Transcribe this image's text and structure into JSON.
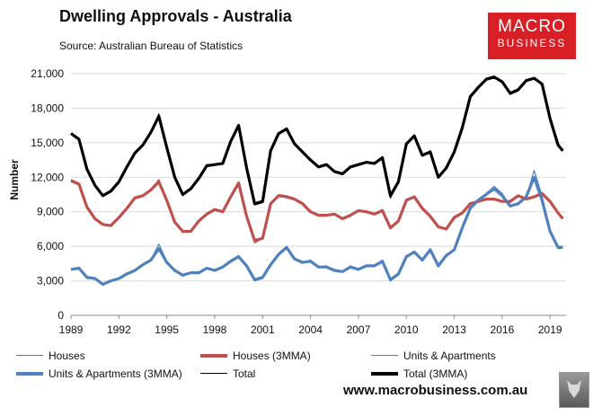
{
  "header": {
    "title": "Dwelling Approvals - Australia",
    "source": "Source:  Australian Bureau of Statistics"
  },
  "logo": {
    "line1": "MACRO",
    "line2": "BUSINESS"
  },
  "footer": {
    "url": "www.macrobusiness.com.au"
  },
  "colors": {
    "houses": "#c0504d",
    "units": "#4f81bd",
    "total": "#000000"
  },
  "chart_data": {
    "type": "line",
    "ylabel": "Number",
    "ylim": [
      0,
      21000
    ],
    "xlim": [
      1989.0,
      2020.0
    ],
    "yticks": [
      "0",
      "3,000",
      "6,000",
      "9,000",
      "12,000",
      "15,000",
      "18,000",
      "21,000"
    ],
    "ytick_values": [
      0,
      3000,
      6000,
      9000,
      12000,
      15000,
      18000,
      21000
    ],
    "xticks": [
      "1989",
      "1992",
      "1995",
      "1998",
      "2001",
      "2004",
      "2007",
      "2010",
      "2013",
      "2016",
      "2019"
    ],
    "xtick_values": [
      1989,
      1992,
      1995,
      1998,
      2001,
      2004,
      2007,
      2010,
      2013,
      2016,
      2019
    ],
    "grid": "horizontal",
    "legend_position": "bottom",
    "x": [
      1989.0,
      1989.5,
      1990.0,
      1990.5,
      1991.0,
      1991.5,
      1992.0,
      1992.5,
      1993.0,
      1993.5,
      1994.0,
      1994.5,
      1995.0,
      1995.5,
      1996.0,
      1996.5,
      1997.0,
      1997.5,
      1998.0,
      1998.5,
      1999.0,
      1999.5,
      2000.0,
      2000.5,
      2001.0,
      2001.5,
      2002.0,
      2002.5,
      2003.0,
      2003.5,
      2004.0,
      2004.5,
      2005.0,
      2005.5,
      2006.0,
      2006.5,
      2007.0,
      2007.5,
      2008.0,
      2008.5,
      2009.0,
      2009.5,
      2010.0,
      2010.5,
      2011.0,
      2011.5,
      2012.0,
      2012.5,
      2013.0,
      2013.5,
      2014.0,
      2014.5,
      2015.0,
      2015.5,
      2016.0,
      2016.5,
      2017.0,
      2017.5,
      2018.0,
      2018.5,
      2019.0,
      2019.5,
      2019.8
    ],
    "series": [
      {
        "name": "Houses",
        "style": "thin",
        "color_key": "houses",
        "values": [
          11800,
          11500,
          9300,
          8400,
          7900,
          7800,
          8500,
          9300,
          10200,
          10400,
          10900,
          11800,
          10100,
          8100,
          7200,
          7300,
          8200,
          8900,
          9200,
          9000,
          10400,
          11600,
          8500,
          6300,
          6700,
          9800,
          10500,
          10400,
          10100,
          9800,
          9000,
          8700,
          8700,
          8800,
          8400,
          8700,
          9100,
          9000,
          8800,
          9200,
          7500,
          8200,
          10100,
          10300,
          9300,
          8600,
          7700,
          7500,
          8600,
          8900,
          9700,
          9900,
          10100,
          10100,
          9900,
          9800,
          10400,
          10100,
          10300,
          10500,
          9800,
          8900,
          8400
        ]
      },
      {
        "name": "Houses (3MMA)",
        "style": "thick",
        "color_key": "houses",
        "values": [
          11700,
          11400,
          9400,
          8400,
          7900,
          7800,
          8500,
          9300,
          10200,
          10400,
          10900,
          11600,
          10000,
          8100,
          7300,
          7300,
          8200,
          8800,
          9200,
          9000,
          10300,
          11500,
          8600,
          6500,
          6700,
          9700,
          10400,
          10300,
          10100,
          9700,
          9000,
          8700,
          8700,
          8800,
          8400,
          8700,
          9100,
          9000,
          8800,
          9100,
          7600,
          8200,
          10000,
          10300,
          9300,
          8600,
          7700,
          7500,
          8500,
          8900,
          9700,
          9900,
          10100,
          10100,
          9900,
          9900,
          10400,
          10100,
          10300,
          10600,
          9900,
          8900,
          8400
        ]
      },
      {
        "name": "Units & Apartments",
        "style": "thin",
        "color_key": "units",
        "values": [
          4000,
          4200,
          3200,
          3200,
          2600,
          3000,
          3200,
          3600,
          3900,
          4400,
          4800,
          6200,
          4700,
          3900,
          3400,
          3700,
          3700,
          4100,
          3900,
          4200,
          4800,
          5200,
          4300,
          3000,
          3200,
          4400,
          5400,
          6000,
          5000,
          4600,
          4800,
          4200,
          4300,
          3900,
          3800,
          4300,
          4000,
          4300,
          4300,
          4800,
          3000,
          3500,
          5200,
          5500,
          4800,
          5800,
          4200,
          5300,
          5700,
          7800,
          9400,
          10100,
          10600,
          11200,
          10600,
          9500,
          9600,
          10200,
          12600,
          10400,
          7400,
          5800,
          5900
        ]
      },
      {
        "name": "Units & Apartments (3MMA)",
        "style": "thick",
        "color_key": "units",
        "values": [
          4000,
          4100,
          3300,
          3200,
          2700,
          3000,
          3200,
          3600,
          3900,
          4400,
          4800,
          5800,
          4600,
          3900,
          3500,
          3700,
          3700,
          4100,
          3900,
          4200,
          4700,
          5100,
          4300,
          3100,
          3300,
          4400,
          5300,
          5900,
          4900,
          4600,
          4700,
          4200,
          4200,
          3900,
          3800,
          4200,
          4000,
          4300,
          4300,
          4700,
          3100,
          3600,
          5100,
          5500,
          4800,
          5700,
          4300,
          5200,
          5700,
          7600,
          9300,
          10000,
          10500,
          11000,
          10400,
          9500,
          9700,
          10300,
          12000,
          10000,
          7300,
          5900,
          5900
        ]
      },
      {
        "name": "Total",
        "style": "thin",
        "color_key": "total",
        "values": [
          15800,
          15400,
          12600,
          11300,
          10400,
          10800,
          11600,
          13000,
          14100,
          14800,
          15900,
          17500,
          14700,
          12000,
          10400,
          11000,
          11900,
          13100,
          13100,
          13200,
          15200,
          16600,
          12700,
          9600,
          9800,
          14400,
          15800,
          16300,
          14900,
          14200,
          13500,
          12900,
          13100,
          12500,
          12300,
          12900,
          13100,
          13300,
          13200,
          13700,
          10200,
          11500,
          15000,
          15600,
          13900,
          14300,
          12000,
          12800,
          14200,
          16400,
          19100,
          19800,
          20600,
          20800,
          20300,
          19200,
          19500,
          20400,
          20600,
          20000,
          17000,
          14700,
          14300
        ]
      },
      {
        "name": "Total (3MMA)",
        "style": "thick",
        "color_key": "total",
        "values": [
          15800,
          15300,
          12700,
          11300,
          10400,
          10800,
          11600,
          12900,
          14100,
          14800,
          15900,
          17300,
          14600,
          12000,
          10500,
          11000,
          11900,
          13000,
          13100,
          13200,
          15100,
          16500,
          12800,
          9700,
          9900,
          14300,
          15800,
          16200,
          14900,
          14200,
          13500,
          12900,
          13100,
          12500,
          12300,
          12900,
          13100,
          13300,
          13200,
          13700,
          10400,
          11600,
          14900,
          15600,
          13900,
          14200,
          12000,
          12800,
          14200,
          16300,
          19000,
          19800,
          20500,
          20700,
          20300,
          19300,
          19600,
          20400,
          20600,
          20100,
          17100,
          14800,
          14300
        ]
      }
    ]
  },
  "legend": [
    {
      "label": "Houses",
      "style": "thin",
      "color_key": "houses"
    },
    {
      "label": "Houses (3MMA)",
      "style": "thick",
      "color_key": "houses"
    },
    {
      "label": "Units & Apartments",
      "style": "thin",
      "color_key": "units"
    },
    {
      "label": "Units & Apartments (3MMA)",
      "style": "thick",
      "color_key": "units"
    },
    {
      "label": "Total",
      "style": "thin",
      "color_key": "total"
    },
    {
      "label": "Total (3MMA)",
      "style": "thick",
      "color_key": "total"
    }
  ]
}
